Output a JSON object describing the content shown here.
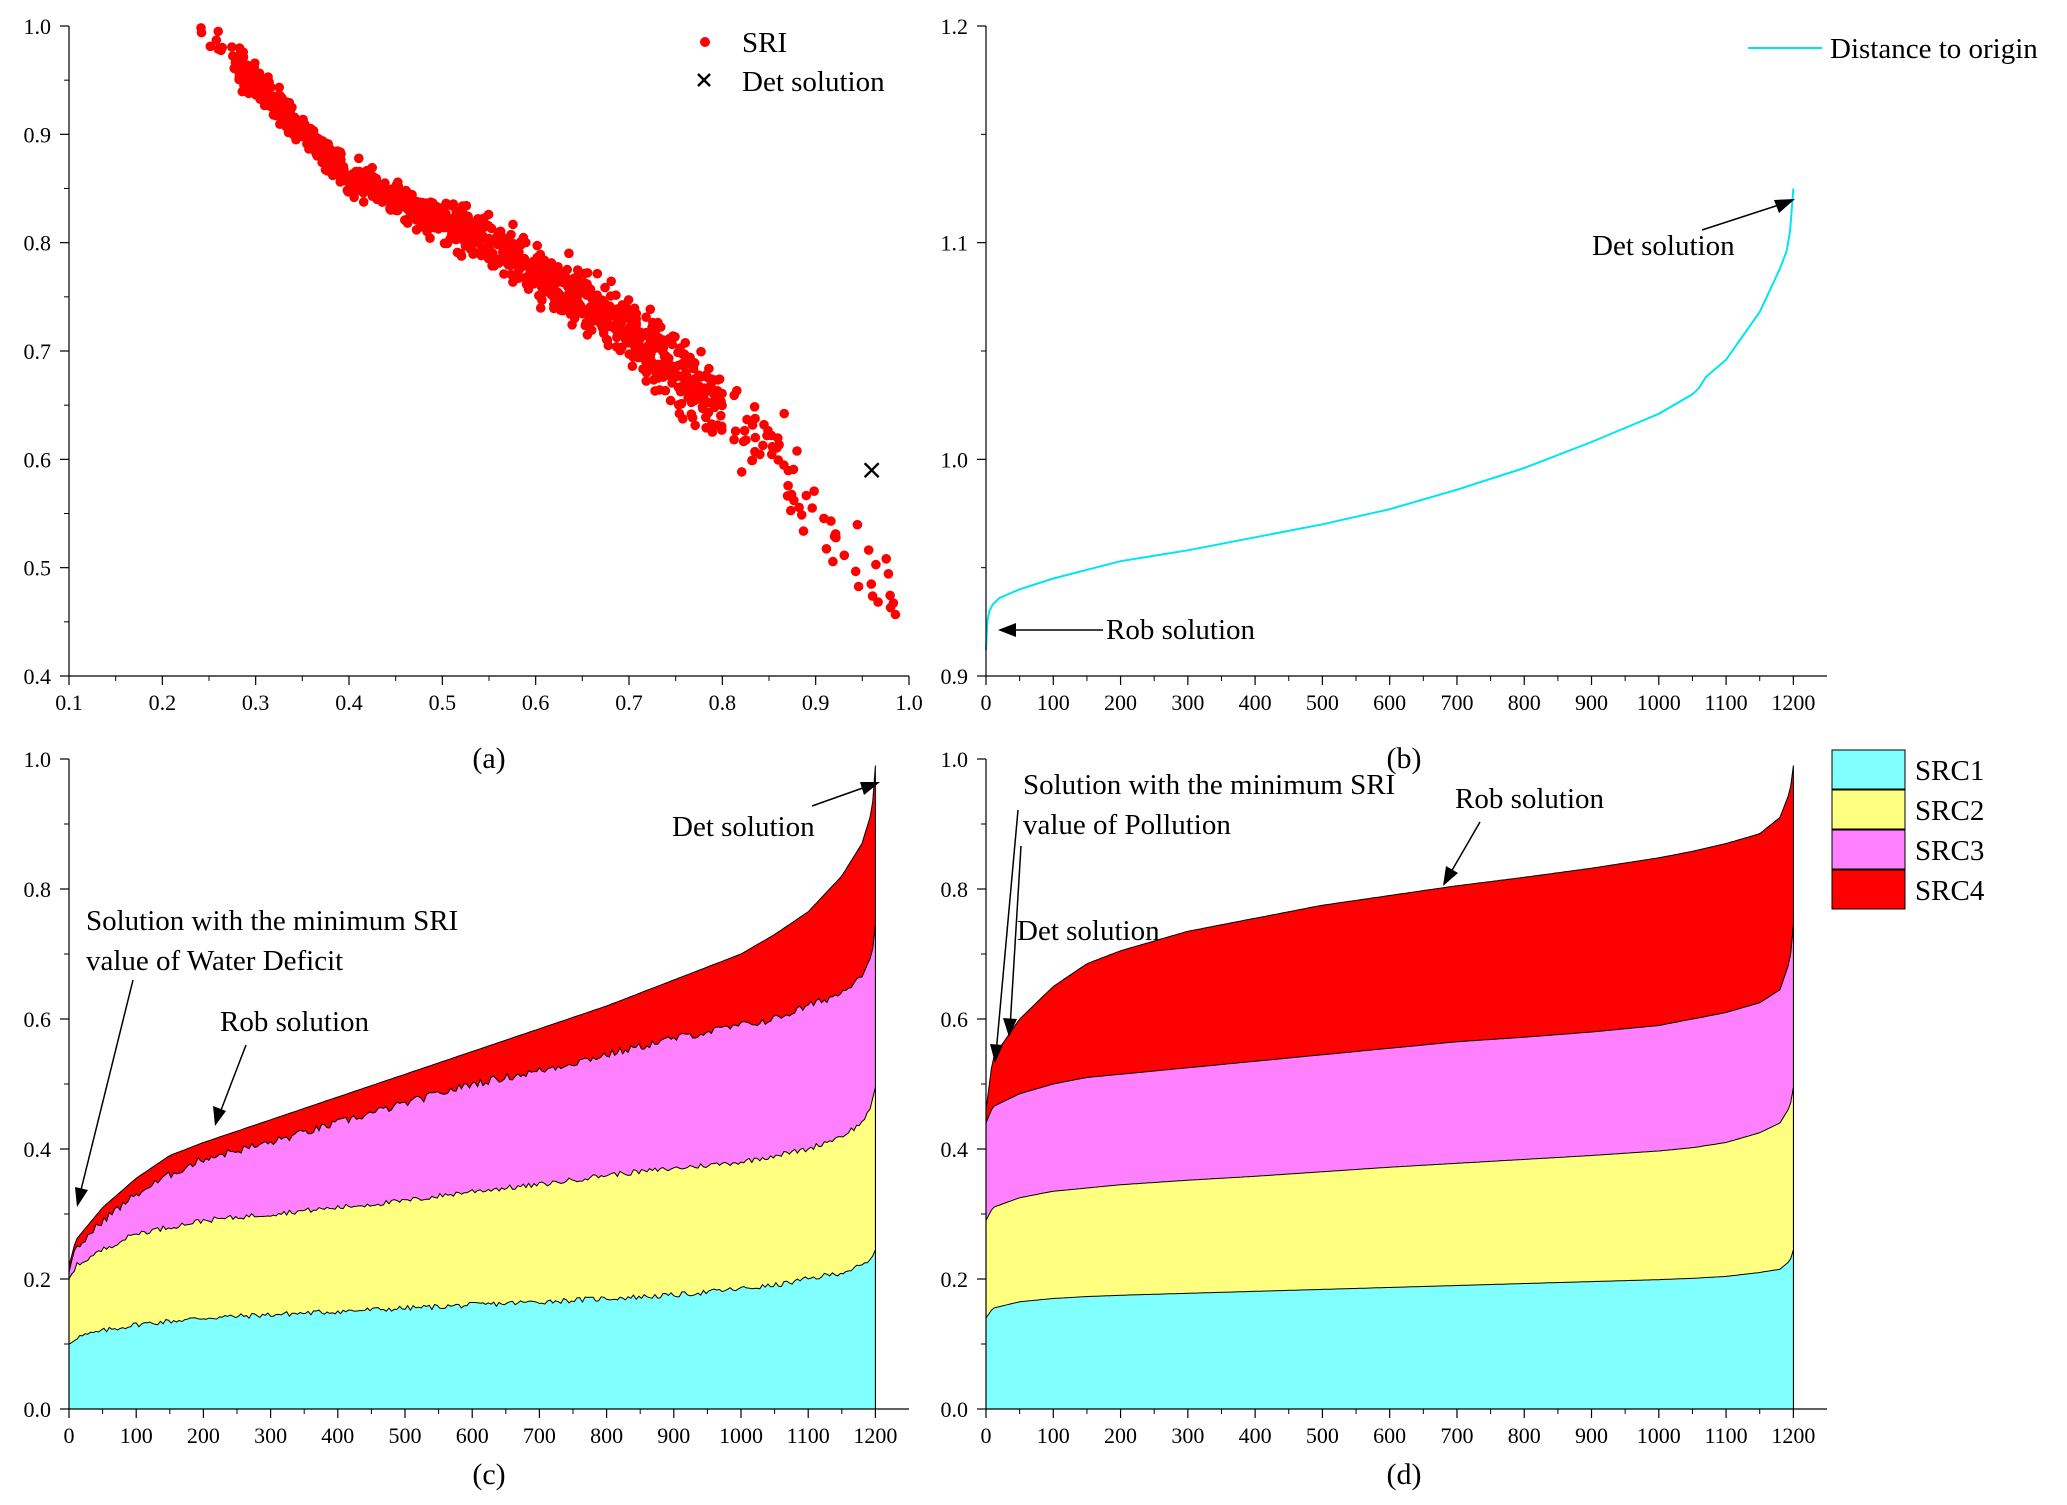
{
  "figure": {
    "panels": [
      {
        "id": "a",
        "label": "(a)",
        "chart_data": {
          "type": "scatter",
          "xlim": [
            0.1,
            1.0
          ],
          "ylim": [
            0.4,
            1.0
          ],
          "xticks": [
            "0.1",
            "0.2",
            "0.3",
            "0.4",
            "0.5",
            "0.6",
            "0.7",
            "0.8",
            "0.9",
            "1.0"
          ],
          "yticks": [
            "0.4",
            "0.5",
            "0.6",
            "0.7",
            "0.8",
            "0.9",
            "1.0"
          ],
          "series": [
            {
              "name": "SRI",
              "color": "#ff0000",
              "marker": "dot",
              "trend": {
                "x_range": [
                  0.24,
                  0.99
                ],
                "points": [
                  [
                    0.24,
                    1.0
                  ],
                  [
                    0.4,
                    0.86
                  ],
                  [
                    0.55,
                    0.8
                  ],
                  [
                    0.7,
                    0.72
                  ],
                  [
                    0.85,
                    0.61
                  ],
                  [
                    0.99,
                    0.46
                  ]
                ],
                "approx_count": 1200
              }
            },
            {
              "name": "Det solution",
              "color": "#000000",
              "marker": "x",
              "x": [
                0.96
              ],
              "y": [
                0.59
              ]
            }
          ],
          "legend": {
            "position": "top-right",
            "entries": [
              "SRI",
              "Det solution"
            ]
          }
        }
      },
      {
        "id": "b",
        "label": "(b)",
        "chart_data": {
          "type": "line",
          "xlim": [
            0,
            1250
          ],
          "ylim": [
            0.9,
            1.2
          ],
          "xticks": [
            "0",
            "100",
            "200",
            "300",
            "400",
            "500",
            "600",
            "700",
            "800",
            "900",
            "1000",
            "1100",
            "1200"
          ],
          "yticks": [
            "0.9",
            "1.0",
            "1.1",
            "1.2"
          ],
          "series": [
            {
              "name": "Distance to origin",
              "color": "#00e5ee",
              "x": [
                0,
                2,
                5,
                10,
                20,
                50,
                100,
                150,
                200,
                300,
                400,
                500,
                600,
                700,
                800,
                900,
                1000,
                1050,
                1060,
                1070,
                1100,
                1150,
                1180,
                1190,
                1195,
                1200
              ],
              "y": [
                0.912,
                0.925,
                0.93,
                0.933,
                0.936,
                0.94,
                0.945,
                0.949,
                0.953,
                0.958,
                0.964,
                0.97,
                0.977,
                0.986,
                0.996,
                1.008,
                1.021,
                1.03,
                1.033,
                1.038,
                1.046,
                1.068,
                1.088,
                1.096,
                1.105,
                1.125
              ]
            }
          ],
          "legend": {
            "position": "top-right",
            "entries": [
              "Distance to origin"
            ]
          },
          "annotations": [
            {
              "text": "Det solution",
              "target": [
                1200,
                1.12
              ]
            },
            {
              "text": "Rob solution",
              "target": [
                10,
                0.922
              ]
            }
          ]
        }
      },
      {
        "id": "c",
        "label": "(c)",
        "chart_data": {
          "type": "area",
          "stacked": true,
          "xlim": [
            0,
            1250
          ],
          "ylim": [
            0.0,
            1.0
          ],
          "xticks": [
            "0",
            "100",
            "200",
            "300",
            "400",
            "500",
            "600",
            "700",
            "800",
            "900",
            "1000",
            "1100",
            "1200"
          ],
          "yticks": [
            "0.0",
            "0.2",
            "0.4",
            "0.6",
            "0.8",
            "1.0"
          ],
          "x": [
            0,
            10,
            50,
            100,
            150,
            200,
            300,
            400,
            500,
            600,
            700,
            800,
            900,
            1000,
            1050,
            1100,
            1150,
            1180,
            1195,
            1200
          ],
          "series": [
            {
              "name": "SRC1",
              "color": "#80ffff",
              "cum": [
                0.1,
                0.11,
                0.12,
                0.13,
                0.135,
                0.14,
                0.145,
                0.15,
                0.155,
                0.16,
                0.165,
                0.17,
                0.175,
                0.185,
                0.19,
                0.2,
                0.21,
                0.22,
                0.23,
                0.245
              ]
            },
            {
              "name": "SRC2",
              "color": "#ffff80",
              "cum": [
                0.2,
                0.22,
                0.245,
                0.27,
                0.28,
                0.29,
                0.3,
                0.31,
                0.32,
                0.335,
                0.345,
                0.36,
                0.37,
                0.38,
                0.39,
                0.4,
                0.42,
                0.44,
                0.47,
                0.495
              ]
            },
            {
              "name": "SRC3",
              "color": "#ff80ff",
              "cum": [
                0.21,
                0.245,
                0.29,
                0.33,
                0.36,
                0.385,
                0.41,
                0.44,
                0.47,
                0.5,
                0.52,
                0.545,
                0.57,
                0.59,
                0.6,
                0.62,
                0.64,
                0.67,
                0.7,
                0.745
              ]
            },
            {
              "name": "SRC4",
              "color": "#ff0000",
              "cum": [
                0.22,
                0.26,
                0.31,
                0.355,
                0.39,
                0.41,
                0.445,
                0.48,
                0.515,
                0.55,
                0.585,
                0.62,
                0.66,
                0.7,
                0.73,
                0.765,
                0.82,
                0.87,
                0.92,
                0.99
              ]
            }
          ],
          "annotations": [
            {
              "text": "Det solution",
              "target": [
                1198,
                0.99
              ]
            },
            {
              "text": "Solution with the minimum SRI",
              "target": [
                8,
                0.3
              ]
            },
            {
              "text": "value of Water Deficit",
              "target": [
                8,
                0.3
              ]
            },
            {
              "text": "Rob solution",
              "target": [
                210,
                0.43
              ]
            }
          ]
        }
      },
      {
        "id": "d",
        "label": "(d)",
        "chart_data": {
          "type": "area",
          "stacked": true,
          "xlim": [
            0,
            1250
          ],
          "ylim": [
            0.0,
            1.0
          ],
          "xticks": [
            "0",
            "100",
            "200",
            "300",
            "400",
            "500",
            "600",
            "700",
            "800",
            "900",
            "1000",
            "1100",
            "1200"
          ],
          "yticks": [
            "0.0",
            "0.2",
            "0.4",
            "0.6",
            "0.8",
            "1.0"
          ],
          "x": [
            0,
            10,
            50,
            100,
            150,
            200,
            300,
            400,
            500,
            600,
            700,
            800,
            900,
            1000,
            1050,
            1100,
            1150,
            1180,
            1195,
            1200
          ],
          "series": [
            {
              "name": "SRC1",
              "color": "#80ffff",
              "cum": [
                0.14,
                0.155,
                0.165,
                0.17,
                0.173,
                0.175,
                0.178,
                0.181,
                0.184,
                0.187,
                0.19,
                0.193,
                0.196,
                0.199,
                0.201,
                0.204,
                0.21,
                0.215,
                0.228,
                0.245
              ]
            },
            {
              "name": "SRC2",
              "color": "#ffff80",
              "cum": [
                0.29,
                0.31,
                0.325,
                0.335,
                0.34,
                0.345,
                0.352,
                0.358,
                0.365,
                0.372,
                0.378,
                0.384,
                0.39,
                0.397,
                0.402,
                0.41,
                0.425,
                0.44,
                0.465,
                0.495
              ]
            },
            {
              "name": "SRC3",
              "color": "#ff80ff",
              "cum": [
                0.44,
                0.465,
                0.485,
                0.5,
                0.51,
                0.515,
                0.525,
                0.535,
                0.545,
                0.555,
                0.565,
                0.572,
                0.58,
                0.59,
                0.6,
                0.61,
                0.625,
                0.645,
                0.69,
                0.745
              ]
            },
            {
              "name": "SRC4",
              "color": "#ff0000",
              "cum": [
                0.46,
                0.54,
                0.6,
                0.65,
                0.685,
                0.705,
                0.735,
                0.755,
                0.775,
                0.79,
                0.805,
                0.818,
                0.832,
                0.848,
                0.858,
                0.87,
                0.885,
                0.91,
                0.95,
                0.99
              ]
            }
          ],
          "legend": {
            "position": "outside-right",
            "entries": [
              "SRC1",
              "SRC2",
              "SRC3",
              "SRC4"
            ]
          },
          "annotations": [
            {
              "text": "Solution with the minimum SRI",
              "target": [
                10,
                0.525
              ]
            },
            {
              "text": "value of Pollution",
              "target": [
                10,
                0.525
              ]
            },
            {
              "text": "Det solution",
              "target": [
                35,
                0.57
              ]
            },
            {
              "text": "Rob solution",
              "target": [
                700,
                0.805
              ]
            }
          ]
        }
      }
    ]
  }
}
